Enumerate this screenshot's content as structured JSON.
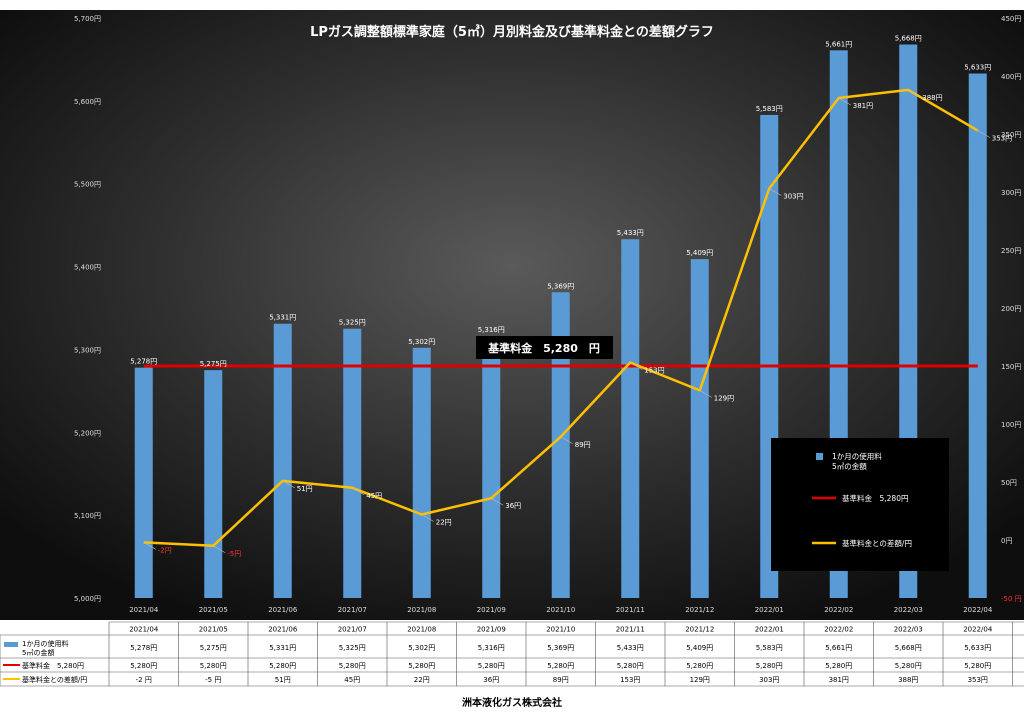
{
  "chart_data": {
    "type": "bar",
    "title": "LPガス調整額標準家庭（5㎥）月別料金及び基準料金との差額グラフ",
    "categories": [
      "2021/04",
      "2021/05",
      "2021/06",
      "2021/07",
      "2021/08",
      "2021/09",
      "2021/10",
      "2021/11",
      "2021/12",
      "2022/01",
      "2022/02",
      "2022/03",
      "2022/04"
    ],
    "series": [
      {
        "name": "1か月の使用料 5㎥の金額",
        "type": "bar",
        "axis": "left",
        "color": "#5b9bd5",
        "values": [
          5278,
          5275,
          5331,
          5325,
          5302,
          5316,
          5369,
          5433,
          5409,
          5583,
          5661,
          5668,
          5633
        ],
        "labels": [
          "5,278円",
          "5,275円",
          "5,331円",
          "5,325円",
          "5,302円",
          "5,316円",
          "5,369円",
          "5,433円",
          "5,409円",
          "5,583円",
          "5,661円",
          "5,668円",
          "5,633円"
        ]
      },
      {
        "name": "基準料金　5,280円",
        "type": "line",
        "axis": "left",
        "color": "#e00000",
        "values": [
          5280,
          5280,
          5280,
          5280,
          5280,
          5280,
          5280,
          5280,
          5280,
          5280,
          5280,
          5280,
          5280
        ],
        "labels": [
          "5,280円",
          "5,280円",
          "5,280円",
          "5,280円",
          "5,280円",
          "5,280円",
          "5,280円",
          "5,280円",
          "5,280円",
          "5,280円",
          "5,280円",
          "5,280円",
          "5,280円"
        ]
      },
      {
        "name": "基準料金との差額/円",
        "type": "line",
        "axis": "right",
        "color": "#ffc000",
        "values": [
          -2,
          -5,
          51,
          45,
          22,
          36,
          89,
          153,
          129,
          303,
          381,
          388,
          353
        ],
        "labels": [
          "-2円",
          "-5円",
          "51円",
          "45円",
          "22円",
          "36円",
          "89円",
          "153円",
          "129円",
          "303円",
          "381円",
          "388円",
          "353円"
        ],
        "table_labels": [
          "-2 円",
          "-5 円",
          "51円",
          "45円",
          "22円",
          "36円",
          "89円",
          "153円",
          "129円",
          "303円",
          "381円",
          "388円",
          "353円"
        ]
      }
    ],
    "ylim_left": [
      5000,
      5700
    ],
    "yticks_left": [
      "5,000円",
      "5,100円",
      "5,200円",
      "5,300円",
      "5,400円",
      "5,500円",
      "5,600円",
      "5,700円"
    ],
    "ylim_right": [
      -50,
      450
    ],
    "yticks_right": [
      "-50 円",
      "0円",
      "50円",
      "100円",
      "150円",
      "200円",
      "250円",
      "300円",
      "350円",
      "400円",
      "450円"
    ],
    "legend_position": "right",
    "legend_labels": {
      "bar": [
        "1か月の使用料",
        "5㎥の金額"
      ],
      "base": "基準料金　5,280円",
      "diff": "基準料金との差額/円"
    },
    "annotation": "基準料金　5,280　円",
    "table_row_labels": {
      "bar": [
        "1か月の使用料",
        "5㎥の金額"
      ],
      "base": "基準料金　5,280円",
      "diff": "基準料金との差額/円"
    },
    "grid": false
  },
  "footer": "洲本液化ガス株式会社",
  "colors": {
    "background": "#1a1a1a",
    "bar": "#5b9bd5",
    "base_line": "#e00000",
    "diff_line": "#ffc000",
    "axis_text": "#dddddd",
    "negative": "#ff3030"
  }
}
